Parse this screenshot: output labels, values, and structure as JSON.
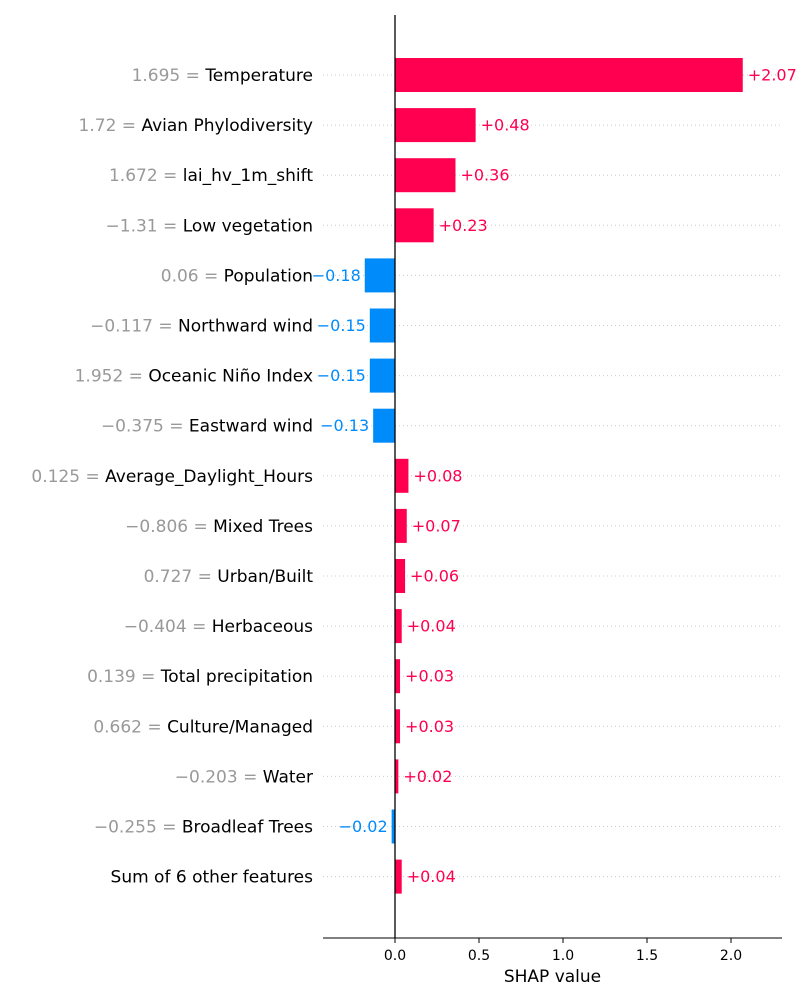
{
  "chart_data": {
    "type": "bar",
    "orientation": "horizontal",
    "chart_style": "shap-waterfall-bar",
    "xlabel": "SHAP value",
    "xlim": [
      -0.42,
      2.3
    ],
    "xticks": [
      "0.0",
      "0.5",
      "1.0",
      "1.5",
      "2.0"
    ],
    "xtick_values": [
      0,
      0.5,
      1.0,
      1.5,
      2.0
    ],
    "grid": false,
    "colors": {
      "positive": "#ff0051",
      "negative": "#008bfb",
      "feature_value_text": "#999999",
      "feature_name_text": "#000000",
      "row_guide": "#cccccc"
    },
    "rows": [
      {
        "feature_value": "1.695",
        "feature": "Temperature",
        "value": 2.07,
        "label": "+2.07"
      },
      {
        "feature_value": "1.72",
        "feature": "Avian Phylodiversity",
        "value": 0.48,
        "label": "+0.48"
      },
      {
        "feature_value": "1.672",
        "feature": "lai_hv_1m_shift",
        "value": 0.36,
        "label": "+0.36"
      },
      {
        "feature_value": "−1.31",
        "feature": "Low vegetation",
        "value": 0.23,
        "label": "+0.23"
      },
      {
        "feature_value": "0.06",
        "feature": "Population",
        "value": -0.18,
        "label": "−0.18"
      },
      {
        "feature_value": "−0.117",
        "feature": "Northward wind",
        "value": -0.15,
        "label": "−0.15"
      },
      {
        "feature_value": "1.952",
        "feature": "Oceanic Niño Index",
        "value": -0.15,
        "label": "−0.15"
      },
      {
        "feature_value": "−0.375",
        "feature": "Eastward wind",
        "value": -0.13,
        "label": "−0.13"
      },
      {
        "feature_value": "0.125",
        "feature": "Average_Daylight_Hours",
        "value": 0.08,
        "label": "+0.08"
      },
      {
        "feature_value": "−0.806",
        "feature": "Mixed Trees",
        "value": 0.07,
        "label": "+0.07"
      },
      {
        "feature_value": "0.727",
        "feature": "Urban/Built",
        "value": 0.06,
        "label": "+0.06"
      },
      {
        "feature_value": "−0.404",
        "feature": "Herbaceous",
        "value": 0.04,
        "label": "+0.04"
      },
      {
        "feature_value": "0.139",
        "feature": "Total precipitation",
        "value": 0.03,
        "label": "+0.03"
      },
      {
        "feature_value": "0.662",
        "feature": "Culture/Managed",
        "value": 0.03,
        "label": "+0.03"
      },
      {
        "feature_value": "−0.203",
        "feature": "Water",
        "value": 0.02,
        "label": "+0.02"
      },
      {
        "feature_value": "−0.255",
        "feature": "Broadleaf Trees",
        "value": -0.02,
        "label": "−0.02"
      },
      {
        "feature_value": "",
        "feature": "Sum of 6 other features",
        "value": 0.04,
        "label": "+0.04"
      }
    ]
  }
}
